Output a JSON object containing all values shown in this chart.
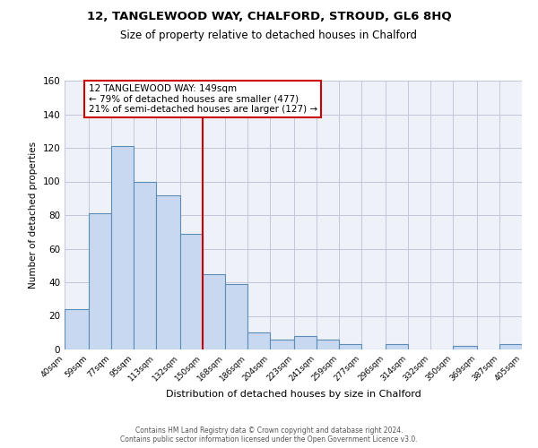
{
  "title": "12, TANGLEWOOD WAY, CHALFORD, STROUD, GL6 8HQ",
  "subtitle": "Size of property relative to detached houses in Chalford",
  "xlabel": "Distribution of detached houses by size in Chalford",
  "ylabel": "Number of detached properties",
  "bar_values": [
    24,
    81,
    121,
    100,
    92,
    69,
    45,
    39,
    10,
    6,
    8,
    6,
    3,
    0,
    3,
    0,
    0,
    2,
    0,
    3
  ],
  "bin_edges": [
    40,
    59,
    77,
    95,
    113,
    132,
    150,
    168,
    186,
    204,
    223,
    241,
    259,
    277,
    296,
    314,
    332,
    350,
    369,
    387,
    405
  ],
  "xtick_labels": [
    "40sqm",
    "59sqm",
    "77sqm",
    "95sqm",
    "113sqm",
    "132sqm",
    "150sqm",
    "168sqm",
    "186sqm",
    "204sqm",
    "223sqm",
    "241sqm",
    "259sqm",
    "277sqm",
    "296sqm",
    "314sqm",
    "332sqm",
    "350sqm",
    "369sqm",
    "387sqm",
    "405sqm"
  ],
  "ylim": [
    0,
    160
  ],
  "yticks": [
    0,
    20,
    40,
    60,
    80,
    100,
    120,
    140,
    160
  ],
  "bar_color": "#c8d8f0",
  "bar_edge_color": "#5b8db8",
  "grid_color": "#c0c8d8",
  "bg_color": "#eef2f8",
  "vline_x": 150,
  "vline_color": "#cc0000",
  "annotation_text": "12 TANGLEWOOD WAY: 149sqm\n← 79% of detached houses are smaller (477)\n21% of semi-detached houses are larger (127) →",
  "annotation_box_color": "#ffffff",
  "annotation_border_color": "#cc0000",
  "footer_line1": "Contains HM Land Registry data © Crown copyright and database right 2024.",
  "footer_line2": "Contains public sector information licensed under the Open Government Licence v3.0."
}
